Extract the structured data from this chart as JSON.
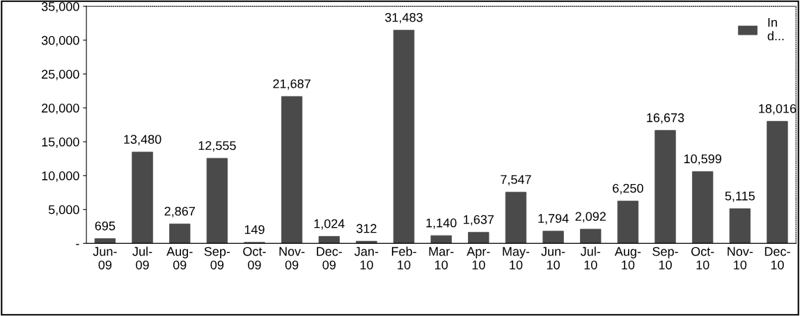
{
  "chart_data": {
    "type": "bar",
    "categories": [
      "Jun-\n09",
      "Jul-\n09",
      "Aug-\n09",
      "Sep-\n09",
      "Oct-\n09",
      "Nov-\n09",
      "Dec-\n09",
      "Jan-\n10",
      "Feb-\n10",
      "Mar-\n10",
      "Apr-\n10",
      "May-\n10",
      "Jun-\n10",
      "Jul-\n10",
      "Aug-\n10",
      "Sep-\n10",
      "Oct-\n10",
      "Nov-\n10",
      "Dec-\n10"
    ],
    "series": [
      {
        "name": "In\nd...",
        "color": "#4a4a4a",
        "values": [
          695,
          13480,
          2867,
          12555,
          149,
          21687,
          1024,
          312,
          31483,
          1140,
          1637,
          7547,
          1794,
          2092,
          6250,
          16673,
          10599,
          5115,
          18016
        ]
      }
    ],
    "ylim": [
      0,
      35000
    ],
    "yticks": [
      {
        "value": 0,
        "label": "-"
      },
      {
        "value": 5000,
        "label": "5,000"
      },
      {
        "value": 10000,
        "label": "10,000"
      },
      {
        "value": 15000,
        "label": "15,000"
      },
      {
        "value": 20000,
        "label": "20,000"
      },
      {
        "value": 25000,
        "label": "25,000"
      },
      {
        "value": 30000,
        "label": "30,000"
      },
      {
        "value": 35000,
        "label": "35,000"
      }
    ],
    "value_labels": [
      "695",
      "13,480",
      "2,867",
      "12,555",
      "149",
      "21,687",
      "1,024",
      "312",
      "31,483",
      "1,140",
      "1,637",
      "7,547",
      "1,794",
      "2,092",
      "6,250",
      "16,673",
      "10,599",
      "5,115",
      "18,016"
    ],
    "legend": "top right",
    "grid": false
  }
}
